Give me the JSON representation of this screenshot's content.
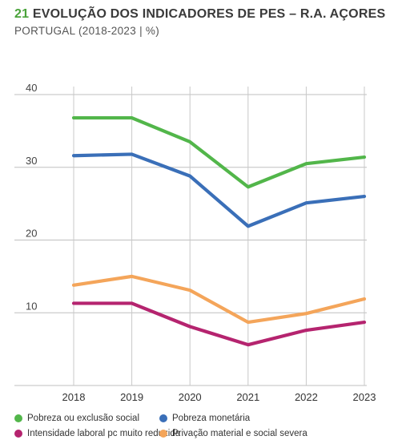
{
  "header": {
    "number": "21",
    "title": "EVOLUÇÃO DOS INDICADORES DE PES – R.A. AÇORES",
    "subtitle": "PORTUGAL (2018-2023 | %)"
  },
  "chart_data": {
    "type": "line",
    "title": "EVOLUÇÃO DOS INDICADORES DE PES – R.A. AÇORES",
    "subtitle": "PORTUGAL (2018-2023 | %)",
    "x": [
      "2018",
      "2019",
      "2020",
      "2021",
      "2022",
      "2023"
    ],
    "ylim": [
      0,
      40
    ],
    "yticks": [
      10,
      20,
      30,
      40
    ],
    "grid": true,
    "legend_position": "bottom",
    "series": [
      {
        "name": "Pobreza ou exclusão social",
        "color": "#52b64a",
        "values": [
          36.8,
          36.8,
          33.5,
          27.3,
          30.5,
          31.4
        ]
      },
      {
        "name": "Pobreza monetária",
        "color": "#3a6fb8",
        "values": [
          31.6,
          31.8,
          28.8,
          21.9,
          25.1,
          26.0
        ]
      },
      {
        "name": "Intensidade laboral pc muito reduzida",
        "color": "#b5246f",
        "values": [
          11.3,
          11.3,
          8.1,
          5.6,
          7.6,
          8.7
        ]
      },
      {
        "name": "Privação material e social severa",
        "color": "#f4a55a",
        "values": [
          13.8,
          15.0,
          13.1,
          8.7,
          9.9,
          11.9
        ]
      }
    ]
  }
}
